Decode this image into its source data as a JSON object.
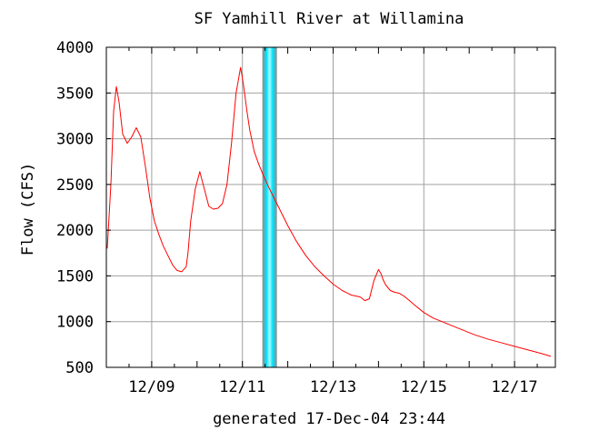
{
  "chart_data": {
    "type": "line",
    "title": "SF Yamhill River at Willamina",
    "ylabel": "Flow (CFS)",
    "xlabel": "",
    "footer": "generated 17-Dec-04 23:44",
    "ylim": [
      500,
      4000
    ],
    "xlim": [
      0,
      9.9
    ],
    "x_unit": "days since 12/08 00:00",
    "yticks": [
      500,
      1000,
      1500,
      2000,
      2500,
      3000,
      3500,
      4000
    ],
    "xticks": [
      {
        "x": 1,
        "label": "12/09"
      },
      {
        "x": 3,
        "label": "12/11"
      },
      {
        "x": 5,
        "label": "12/13"
      },
      {
        "x": 7,
        "label": "12/15"
      },
      {
        "x": 9,
        "label": "12/17"
      }
    ],
    "grid": true,
    "colors": {
      "line": "#ff0000",
      "grid": "#a0a0a0",
      "axes": "#000000",
      "now_band": "#00e5ff",
      "now_band_edge": "#8c8c8c"
    },
    "now_marker_x": 3.6,
    "series": [
      {
        "name": "",
        "x": [
          0.02,
          0.1,
          0.16,
          0.22,
          0.28,
          0.36,
          0.46,
          0.56,
          0.66,
          0.76,
          0.86,
          0.96,
          1.06,
          1.16,
          1.26,
          1.36,
          1.46,
          1.56,
          1.66,
          1.76,
          1.8,
          1.86,
          1.96,
          2.06,
          2.16,
          2.26,
          2.36,
          2.46,
          2.56,
          2.66,
          2.76,
          2.86,
          2.96,
          3.02,
          3.06,
          3.1,
          3.16,
          3.26,
          3.36,
          3.46,
          3.6,
          3.8,
          4.0,
          4.2,
          4.4,
          4.6,
          4.8,
          5.0,
          5.2,
          5.4,
          5.6,
          5.7,
          5.8,
          5.9,
          6.0,
          6.06,
          6.1,
          6.16,
          6.26,
          6.36,
          6.46,
          6.56,
          6.66,
          6.8,
          7.0,
          7.2,
          7.5,
          7.8,
          8.1,
          8.4,
          8.7,
          9.0,
          9.3,
          9.6,
          9.8
        ],
        "y": [
          1800,
          2500,
          3300,
          3570,
          3400,
          3050,
          2950,
          3020,
          3120,
          3020,
          2700,
          2350,
          2100,
          1950,
          1820,
          1720,
          1620,
          1560,
          1545,
          1600,
          1750,
          2100,
          2450,
          2640,
          2450,
          2260,
          2230,
          2240,
          2290,
          2500,
          2950,
          3500,
          3780,
          3600,
          3450,
          3300,
          3100,
          2860,
          2720,
          2600,
          2450,
          2250,
          2050,
          1870,
          1720,
          1600,
          1500,
          1410,
          1340,
          1290,
          1270,
          1230,
          1250,
          1450,
          1570,
          1520,
          1460,
          1400,
          1340,
          1320,
          1310,
          1280,
          1240,
          1180,
          1100,
          1040,
          980,
          920,
          860,
          810,
          770,
          730,
          690,
          650,
          620
        ]
      }
    ]
  }
}
